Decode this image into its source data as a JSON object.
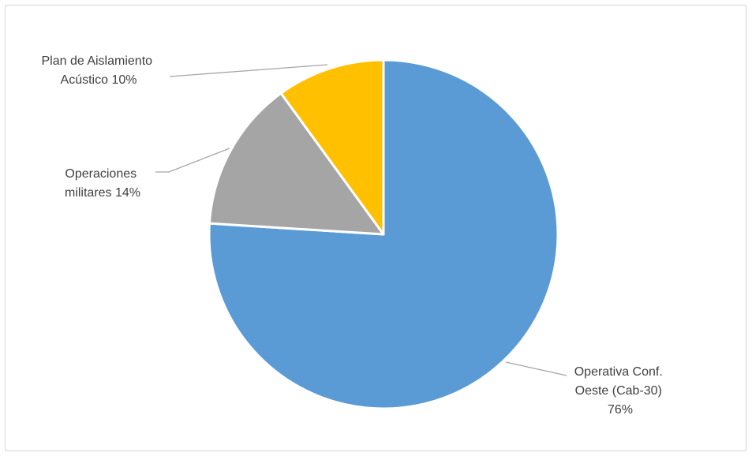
{
  "chart_data": {
    "type": "pie",
    "title": "",
    "slices": [
      {
        "name": "Operativa Conf. Oeste (Cab-30)",
        "value": 76,
        "label": "76%",
        "color": "#5b9bd5"
      },
      {
        "name": "Operaciones militares",
        "value": 14,
        "label": "14%",
        "color": "#a5a5a5"
      },
      {
        "name": "Plan de Aislamiento Acústico",
        "value": 10,
        "label": "10%",
        "color": "#ffc000"
      }
    ],
    "label_lines": [
      [
        "Operativa Conf.",
        "Oeste (Cab-30)",
        "76%"
      ],
      [
        "Operaciones",
        "militares 14%"
      ],
      [
        "Plan de Aislamiento",
        "Acústico 10%"
      ]
    ],
    "legend": "none",
    "leader_line_color": "#a6a6a6"
  }
}
